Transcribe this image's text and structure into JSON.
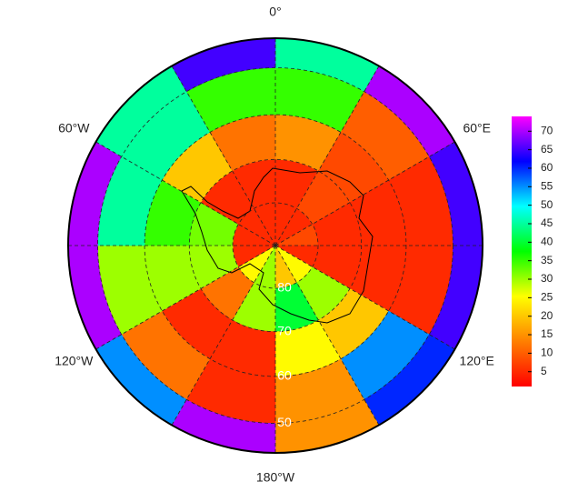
{
  "chart_data": {
    "type": "polar_map",
    "boundary_lat": 44,
    "lon_labels": [
      {
        "value": 0,
        "label": "0°"
      },
      {
        "value": 60,
        "label": "60°E"
      },
      {
        "value": 120,
        "label": "120°E"
      },
      {
        "value": 180,
        "label": "180°W"
      },
      {
        "value": -120,
        "label": "120°W"
      },
      {
        "value": -60,
        "label": "60°W"
      }
    ],
    "lat_circles": [
      80,
      70,
      60,
      50
    ],
    "grid": true,
    "lat_edges": [
      90,
      80,
      70,
      60,
      50,
      44
    ],
    "lon_edges": [
      0,
      30,
      60,
      90,
      120,
      150,
      180,
      210,
      240,
      270,
      300,
      330,
      360
    ],
    "values": [
      [
        5,
        5,
        8,
        5,
        25,
        20,
        30,
        25,
        5,
        5,
        5,
        5
      ],
      [
        5,
        8,
        5,
        5,
        30,
        40,
        30,
        12,
        30,
        32,
        5,
        5
      ],
      [
        15,
        8,
        5,
        5,
        20,
        25,
        5,
        5,
        30,
        35,
        20,
        12
      ],
      [
        35,
        10,
        5,
        5,
        55,
        15,
        5,
        12,
        30,
        45,
        45,
        35
      ],
      [
        45,
        70,
        65,
        65,
        60,
        15,
        70,
        55,
        70,
        70,
        45,
        65
      ]
    ],
    "colormap": [
      "#ff0000",
      "#ff7f00",
      "#ffff00",
      "#00ff00",
      "#00ffff",
      "#0000ff",
      "#ff00ff"
    ],
    "clim": [
      1,
      74
    ],
    "cticks": [
      5,
      10,
      15,
      20,
      25,
      30,
      35,
      40,
      45,
      50,
      55,
      60,
      65,
      70
    ]
  }
}
